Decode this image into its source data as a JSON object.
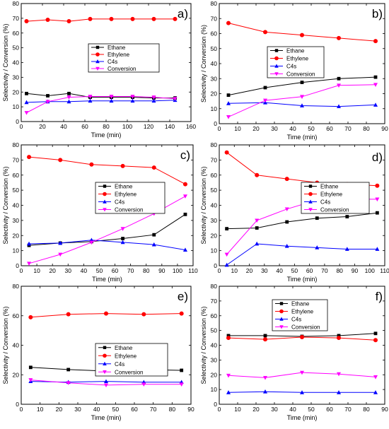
{
  "figure": {
    "description_label": ""
  },
  "chart_data": [
    {
      "type": "line",
      "panel": "a)",
      "xlabel": "Time (min)",
      "ylabel": "Selectivity / Conversion (%)",
      "xlim": [
        0,
        160
      ],
      "ylim": [
        0,
        80
      ],
      "xticks": [
        0,
        20,
        40,
        60,
        80,
        100,
        120,
        140,
        160
      ],
      "yticks": [
        0,
        10,
        20,
        30,
        40,
        50,
        60,
        70,
        80
      ],
      "legend_position": "center-right",
      "series": [
        {
          "name": "Ethane",
          "color": "#000000",
          "marker": "square",
          "x": [
            5,
            25,
            45,
            65,
            85,
            105,
            125,
            145
          ],
          "y": [
            19,
            17.5,
            19,
            16.5,
            16.5,
            16.5,
            16,
            16
          ]
        },
        {
          "name": "Ethylene",
          "color": "#ff0000",
          "marker": "circle",
          "x": [
            5,
            25,
            45,
            65,
            85,
            105,
            125,
            145
          ],
          "y": [
            68,
            69,
            68,
            69.5,
            69.5,
            69.5,
            69.5,
            69.5
          ]
        },
        {
          "name": "C4s",
          "color": "#0000ff",
          "marker": "triangle-up",
          "x": [
            5,
            25,
            45,
            65,
            85,
            105,
            125,
            145
          ],
          "y": [
            13,
            13.5,
            13.5,
            14,
            14,
            14,
            14,
            14.5
          ]
        },
        {
          "name": "Conversion",
          "color": "#ff00ff",
          "marker": "triangle-down",
          "x": [
            5,
            25,
            45,
            65,
            85,
            105,
            125,
            145
          ],
          "y": [
            6,
            13.5,
            16.5,
            17,
            17,
            17,
            16.5,
            15.5
          ]
        }
      ]
    },
    {
      "type": "line",
      "panel": "b)",
      "xlabel": "Time (min)",
      "ylabel": "Selectivity / Conversion (%)",
      "xlim": [
        0,
        90
      ],
      "ylim": [
        0,
        80
      ],
      "xticks": [
        0,
        10,
        20,
        30,
        40,
        50,
        60,
        70,
        80,
        90
      ],
      "yticks": [
        0,
        10,
        20,
        30,
        40,
        50,
        60,
        70,
        80
      ],
      "legend_position": "center-left",
      "series": [
        {
          "name": "Ethane",
          "color": "#000000",
          "marker": "square",
          "x": [
            5,
            25,
            45,
            65,
            85
          ],
          "y": [
            19,
            24,
            27.5,
            30,
            31
          ]
        },
        {
          "name": "Ethylene",
          "color": "#ff0000",
          "marker": "circle",
          "x": [
            5,
            25,
            45,
            65,
            85
          ],
          "y": [
            67,
            61,
            59,
            57,
            55
          ]
        },
        {
          "name": "C4s",
          "color": "#0000ff",
          "marker": "triangle-up",
          "x": [
            5,
            25,
            45,
            65,
            85
          ],
          "y": [
            13.5,
            14,
            12,
            11.5,
            12.5
          ]
        },
        {
          "name": "Conversion",
          "color": "#ff00ff",
          "marker": "triangle-down",
          "x": [
            5,
            25,
            45,
            65,
            85
          ],
          "y": [
            4.5,
            15.5,
            18,
            25.5,
            26
          ]
        }
      ]
    },
    {
      "type": "line",
      "panel": "c)",
      "xlabel": "Time (min)",
      "ylabel": "Selectivity / Conversion (%)",
      "xlim": [
        0,
        110
      ],
      "ylim": [
        0,
        80
      ],
      "xticks": [
        0,
        10,
        20,
        30,
        40,
        50,
        60,
        70,
        80,
        90,
        100,
        110
      ],
      "yticks": [
        0,
        10,
        20,
        30,
        40,
        50,
        60,
        70,
        80
      ],
      "legend_position": "center-right",
      "series": [
        {
          "name": "Ethane",
          "color": "#000000",
          "marker": "square",
          "x": [
            5,
            25,
            45,
            65,
            85,
            105
          ],
          "y": [
            13.5,
            15,
            16,
            18,
            20.5,
            34
          ]
        },
        {
          "name": "Ethylene",
          "color": "#ff0000",
          "marker": "circle",
          "x": [
            5,
            25,
            45,
            65,
            85,
            105
          ],
          "y": [
            72,
            70,
            67,
            66,
            65,
            54
          ]
        },
        {
          "name": "C4s",
          "color": "#0000ff",
          "marker": "triangle-up",
          "x": [
            5,
            25,
            45,
            65,
            85,
            105
          ],
          "y": [
            14.5,
            15,
            17,
            15.5,
            14,
            10.5
          ]
        },
        {
          "name": "Conversion",
          "color": "#ff00ff",
          "marker": "triangle-down",
          "x": [
            5,
            25,
            45,
            65,
            85,
            105
          ],
          "y": [
            1.5,
            7.5,
            15.5,
            24.5,
            34.5,
            46
          ]
        }
      ]
    },
    {
      "type": "line",
      "panel": "d)",
      "xlabel": "Time (min)",
      "ylabel": "Selectivity / Conversion (%)",
      "xlim": [
        0,
        110
      ],
      "ylim": [
        0,
        80
      ],
      "xticks": [
        0,
        10,
        20,
        30,
        40,
        50,
        60,
        70,
        80,
        90,
        100,
        110
      ],
      "yticks": [
        0,
        10,
        20,
        30,
        40,
        50,
        60,
        70,
        80
      ],
      "legend_position": "center-right",
      "series": [
        {
          "name": "Ethane",
          "color": "#000000",
          "marker": "square",
          "x": [
            5,
            25,
            45,
            65,
            85,
            105
          ],
          "y": [
            24.5,
            25,
            29,
            31.5,
            32.5,
            35
          ]
        },
        {
          "name": "Ethylene",
          "color": "#ff0000",
          "marker": "circle",
          "x": [
            5,
            25,
            45,
            65,
            85,
            105
          ],
          "y": [
            75,
            60,
            57.5,
            55,
            54,
            53
          ]
        },
        {
          "name": "C4s",
          "color": "#0000ff",
          "marker": "triangle-up",
          "x": [
            5,
            25,
            45,
            65,
            85,
            105
          ],
          "y": [
            0.5,
            14.5,
            13,
            12,
            11,
            11
          ]
        },
        {
          "name": "Conversion",
          "color": "#ff00ff",
          "marker": "triangle-down",
          "x": [
            5,
            25,
            45,
            65,
            85,
            105
          ],
          "y": [
            7.5,
            30,
            37.5,
            43.5,
            44,
            44
          ]
        }
      ]
    },
    {
      "type": "line",
      "panel": "e)",
      "xlabel": "Time (min)",
      "ylabel": "Selectivity / Conversion (%)",
      "xlim": [
        0,
        90
      ],
      "ylim": [
        0,
        80
      ],
      "xticks": [
        0,
        10,
        20,
        30,
        40,
        50,
        60,
        70,
        80,
        90
      ],
      "yticks": [
        0,
        20,
        40,
        60,
        80
      ],
      "legend_position": "center-right",
      "series": [
        {
          "name": "Ethane",
          "color": "#000000",
          "marker": "square",
          "x": [
            5,
            25,
            45,
            65,
            85
          ],
          "y": [
            25,
            23.5,
            22.5,
            23.5,
            23
          ]
        },
        {
          "name": "Ethylene",
          "color": "#ff0000",
          "marker": "circle",
          "x": [
            5,
            25,
            45,
            65,
            85
          ],
          "y": [
            59,
            61,
            61.5,
            61,
            61.5
          ]
        },
        {
          "name": "C4s",
          "color": "#0000ff",
          "marker": "triangle-up",
          "x": [
            5,
            25,
            45,
            65,
            85
          ],
          "y": [
            15.5,
            15,
            15.5,
            15,
            15
          ]
        },
        {
          "name": "Conversion",
          "color": "#ff00ff",
          "marker": "triangle-down",
          "x": [
            5,
            25,
            45,
            65,
            85
          ],
          "y": [
            16.5,
            14.5,
            13,
            13.5,
            13.5
          ]
        }
      ]
    },
    {
      "type": "line",
      "panel": "f)",
      "xlabel": "Time (min)",
      "ylabel": "Selectivity / Conversion (%)",
      "xlim": [
        0,
        90
      ],
      "ylim": [
        0,
        80
      ],
      "xticks": [
        0,
        10,
        20,
        30,
        40,
        50,
        60,
        70,
        80,
        90
      ],
      "yticks": [
        0,
        10,
        20,
        30,
        40,
        50,
        60,
        70,
        80
      ],
      "legend_position": "top-center",
      "series": [
        {
          "name": "Ethane",
          "color": "#000000",
          "marker": "square",
          "x": [
            5,
            25,
            45,
            65,
            85
          ],
          "y": [
            46.5,
            46.5,
            46,
            46.5,
            48
          ]
        },
        {
          "name": "Ethylene",
          "color": "#ff0000",
          "marker": "circle",
          "x": [
            5,
            25,
            45,
            65,
            85
          ],
          "y": [
            45,
            44,
            45.5,
            45,
            43.5
          ]
        },
        {
          "name": "C4s",
          "color": "#0000ff",
          "marker": "triangle-up",
          "x": [
            5,
            25,
            45,
            65,
            85
          ],
          "y": [
            8,
            8.5,
            8,
            8,
            8
          ]
        },
        {
          "name": "Conversion",
          "color": "#ff00ff",
          "marker": "triangle-down",
          "x": [
            5,
            25,
            45,
            65,
            85
          ],
          "y": [
            19.5,
            18,
            21.5,
            20.5,
            18.5
          ]
        }
      ]
    }
  ]
}
